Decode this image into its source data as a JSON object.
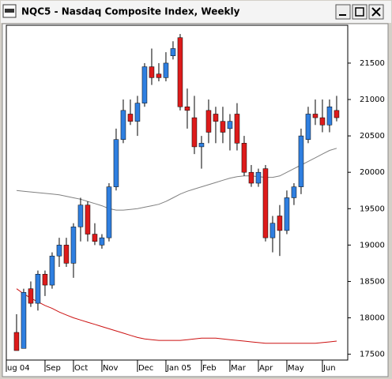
{
  "chart_data": {
    "type": "candlestick",
    "title": "NQC5 - Nasdaq Composite Index, Weekly",
    "up_color": "#2f7fe0",
    "down_color": "#dd1b1b",
    "open": [
      17800,
      17580,
      18400,
      18200,
      18600,
      18450,
      18850,
      19000,
      18750,
      19250,
      19550,
      19150,
      19000,
      19100,
      19800,
      20450,
      20800,
      20700,
      20950,
      21450,
      21350,
      21300,
      21600,
      21850,
      20900,
      20750,
      20350,
      20850,
      20800,
      20700,
      20600,
      20800,
      20400,
      20000,
      19850,
      20050,
      19100,
      19400,
      19200,
      19650,
      19800,
      20450,
      20800,
      20750,
      20650,
      20850
    ],
    "high": [
      18050,
      18400,
      18500,
      18650,
      18650,
      18900,
      19100,
      19100,
      19300,
      19650,
      19600,
      19300,
      19150,
      19850,
      20600,
      21000,
      21000,
      21050,
      21500,
      21700,
      21500,
      21650,
      21800,
      21900,
      21150,
      21050,
      20500,
      21000,
      20900,
      20900,
      20800,
      20950,
      20500,
      20100,
      20050,
      20100,
      19400,
      19550,
      19750,
      19850,
      20600,
      20900,
      21000,
      21000,
      21000,
      21050
    ],
    "low": [
      17550,
      17580,
      18150,
      18100,
      18300,
      18400,
      18700,
      18700,
      18550,
      19050,
      19050,
      19000,
      18950,
      19050,
      19750,
      20400,
      20650,
      20500,
      20900,
      21200,
      21250,
      21250,
      21550,
      20850,
      20600,
      20250,
      20050,
      20400,
      20400,
      20400,
      20300,
      20300,
      19950,
      19800,
      19800,
      19050,
      18900,
      18850,
      19150,
      19550,
      19700,
      20400,
      20650,
      20550,
      20550,
      20700
    ],
    "close": [
      17550,
      18350,
      18200,
      18600,
      18450,
      18850,
      19000,
      18750,
      19250,
      19550,
      19150,
      19050,
      19100,
      19800,
      20450,
      20850,
      20700,
      20950,
      21450,
      21300,
      21300,
      21500,
      21700,
      20900,
      20850,
      20350,
      20400,
      20550,
      20700,
      20550,
      20700,
      20400,
      20000,
      19850,
      20000,
      19100,
      19300,
      19200,
      19650,
      19800,
      20500,
      20800,
      20750,
      20650,
      20900,
      20750
    ],
    "lines": [
      {
        "color": "#808080",
        "values": [
          19750,
          19740,
          19730,
          19720,
          19710,
          19700,
          19690,
          19670,
          19650,
          19630,
          19600,
          19570,
          19540,
          19500,
          19480,
          19480,
          19490,
          19500,
          19520,
          19540,
          19560,
          19600,
          19650,
          19700,
          19740,
          19770,
          19800,
          19830,
          19860,
          19890,
          19920,
          19940,
          19950,
          19950,
          19940,
          19930,
          19930,
          19950,
          20000,
          20050,
          20100,
          20150,
          20200,
          20250,
          20300,
          20330
        ]
      },
      {
        "color": "#cc1111",
        "values": [
          18400,
          18330,
          18270,
          18220,
          18170,
          18130,
          18080,
          18040,
          18000,
          17970,
          17940,
          17910,
          17880,
          17850,
          17820,
          17790,
          17760,
          17730,
          17710,
          17700,
          17690,
          17690,
          17690,
          17690,
          17700,
          17710,
          17720,
          17720,
          17720,
          17710,
          17700,
          17690,
          17680,
          17670,
          17660,
          17650,
          17650,
          17650,
          17650,
          17650,
          17650,
          17650,
          17650,
          17660,
          17670,
          17680
        ]
      }
    ],
    "ylim": [
      17420,
      22020
    ],
    "yticks": [
      17500,
      18000,
      18500,
      19000,
      19500,
      20000,
      20500,
      21000,
      21500
    ],
    "xlim": [
      -1.44,
      46.56
    ],
    "xticks": [
      {
        "value": -1.44,
        "label": "ug 04"
      },
      {
        "value": 4,
        "label": "Sep"
      },
      {
        "value": 8,
        "label": "Oct"
      },
      {
        "value": 12,
        "label": "Nov"
      },
      {
        "value": 17,
        "label": "Dec"
      },
      {
        "value": 21,
        "label": "Jan 05"
      },
      {
        "value": 26,
        "label": "Feb"
      },
      {
        "value": 30,
        "label": "Mar"
      },
      {
        "value": 34,
        "label": "Apr"
      },
      {
        "value": 38,
        "label": "May"
      },
      {
        "value": 43,
        "label": "Jun"
      }
    ]
  }
}
